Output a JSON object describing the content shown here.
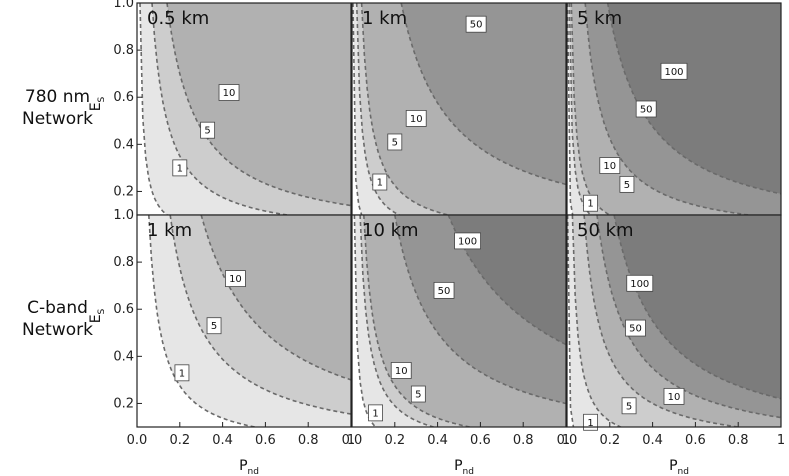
{
  "figure": {
    "row_labels": [
      {
        "line1": "780 nm",
        "line2": "Network"
      },
      {
        "line1": "C-band",
        "line2": "Network"
      }
    ],
    "xlabel": {
      "main": "P",
      "sub": "nd"
    },
    "ylabel": {
      "main": "E",
      "sub": "S"
    },
    "x_ticks": [
      "0.0",
      "0.2",
      "0.4",
      "0.6",
      "0.8",
      "1"
    ],
    "y_ticks": [
      "0.2",
      "0.4",
      "0.6",
      "0.8",
      "1.0"
    ],
    "colors": {
      "band_0": "#ffffff",
      "band_1": "#e6e6e6",
      "band_2": "#cdcdcd",
      "band_3": "#b1b1b1",
      "band_4": "#959595",
      "band_5": "#7c7c7c",
      "contour": "#6a6a6a"
    }
  },
  "chart_data": [
    {
      "type": "contour",
      "title": "0.5 km",
      "xlim": [
        0,
        1
      ],
      "ylim": [
        0.1,
        1.0
      ],
      "xlabel": "",
      "ylabel": "E_S",
      "contours": [
        {
          "label": "1",
          "k": 0.014,
          "label_at": [
            0.2,
            0.3
          ]
        },
        {
          "label": "5",
          "k": 0.07,
          "label_at": [
            0.33,
            0.46
          ]
        },
        {
          "label": "10",
          "k": 0.14,
          "label_at": [
            0.43,
            0.62
          ]
        }
      ]
    },
    {
      "type": "contour",
      "title": "1 km",
      "xlim": [
        0,
        1
      ],
      "ylim": [
        0.1,
        1.0
      ],
      "xlabel": "",
      "ylabel": "",
      "contours": [
        {
          "label": "1",
          "k": 0.0045,
          "label_at": [
            0.13,
            0.24
          ]
        },
        {
          "label": "5",
          "k": 0.022,
          "label_at": [
            0.2,
            0.41
          ]
        },
        {
          "label": "10",
          "k": 0.045,
          "label_at": [
            0.3,
            0.51
          ]
        },
        {
          "label": "50",
          "k": 0.23,
          "label_at": [
            0.58,
            0.91
          ]
        }
      ]
    },
    {
      "type": "contour",
      "title": "5 km",
      "xlim": [
        0,
        1
      ],
      "ylim": [
        0.1,
        1.0
      ],
      "xlabel": "",
      "ylabel": "",
      "contours": [
        {
          "label": "1",
          "k": 0.0025,
          "label_at": [
            0.11,
            0.15
          ]
        },
        {
          "label": "5",
          "k": 0.011,
          "label_at": [
            0.28,
            0.23
          ]
        },
        {
          "label": "10",
          "k": 0.02,
          "label_at": [
            0.2,
            0.31
          ]
        },
        {
          "label": "50",
          "k": 0.085,
          "label_at": [
            0.37,
            0.55
          ]
        },
        {
          "label": "100",
          "k": 0.19,
          "label_at": [
            0.5,
            0.71
          ]
        }
      ]
    },
    {
      "type": "contour",
      "title": "1 km",
      "xlim": [
        0,
        1
      ],
      "ylim": [
        0.1,
        1.0
      ],
      "xlabel": "P_nd",
      "ylabel": "E_S",
      "contours": [
        {
          "label": "1",
          "k": 0.055,
          "label_at": [
            0.21,
            0.33
          ]
        },
        {
          "label": "5",
          "k": 0.155,
          "label_at": [
            0.36,
            0.53
          ]
        },
        {
          "label": "10",
          "k": 0.3,
          "label_at": [
            0.46,
            0.73
          ]
        }
      ]
    },
    {
      "type": "contour",
      "title": "10 km",
      "xlim": [
        0,
        1
      ],
      "ylim": [
        0.1,
        1.0
      ],
      "xlabel": "P_nd",
      "ylabel": "",
      "contours": [
        {
          "label": "1",
          "k": 0.011,
          "label_at": [
            0.11,
            0.16
          ]
        },
        {
          "label": "5",
          "k": 0.038,
          "label_at": [
            0.31,
            0.24
          ]
        },
        {
          "label": "10",
          "k": 0.055,
          "label_at": [
            0.23,
            0.34
          ]
        },
        {
          "label": "50",
          "k": 0.2,
          "label_at": [
            0.43,
            0.68
          ]
        },
        {
          "label": "100",
          "k": 0.45,
          "label_at": [
            0.54,
            0.89
          ]
        }
      ]
    },
    {
      "type": "contour",
      "title": "50 km",
      "xlim": [
        0,
        1
      ],
      "ylim": [
        0.1,
        1.0
      ],
      "xlabel": "P_nd",
      "ylabel": "",
      "contours": [
        {
          "label": "1",
          "k": 0.003,
          "label_at": [
            0.11,
            0.12
          ]
        },
        {
          "label": "5",
          "k": 0.025,
          "label_at": [
            0.29,
            0.19
          ]
        },
        {
          "label": "10",
          "k": 0.08,
          "label_at": [
            0.5,
            0.23
          ]
        },
        {
          "label": "50",
          "k": 0.14,
          "label_at": [
            0.32,
            0.52
          ]
        },
        {
          "label": "100",
          "k": 0.22,
          "label_at": [
            0.34,
            0.71
          ]
        }
      ]
    }
  ]
}
